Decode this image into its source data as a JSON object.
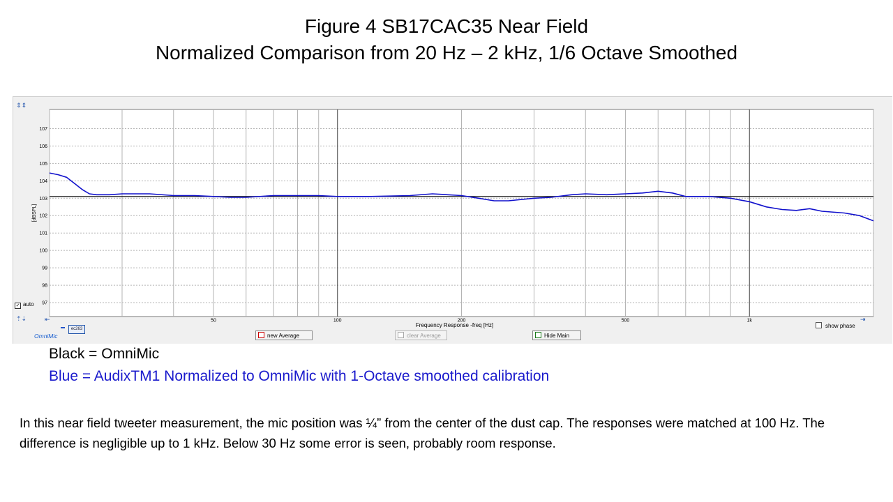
{
  "slide": {
    "title_line1": "Figure  4   SB17CAC35  Near Field",
    "title_line2": "Normalized Comparison from 20 Hz – 2 kHz, 1/6 Octave Smoothed",
    "legend_black": "Black = OmniMic",
    "legend_blue": "Blue = AudixTM1 Normalized to OmniMic with 1-Octave smoothed calibration",
    "body_text": "In this near field tweeter measurement, the mic position was ¼” from the center of the dust cap.  The responses were matched at 100 Hz.  The difference is negligible up to 1 kHz.  Below 30 Hz some error is seen, probably room response."
  },
  "software": {
    "app_label": "OmniMic",
    "trace_tag": "ec263",
    "auto_label": "auto",
    "auto_checked": true,
    "show_phase_label": "show phase",
    "show_phase_checked": false,
    "buttons": {
      "new_average": "new Average",
      "clear_average": "clear Average",
      "hide_main": "Hide Main"
    }
  },
  "chart_data": {
    "type": "line",
    "title": "",
    "xlabel": "Frequency Response -freq [Hz]",
    "ylabel": "[dBSPL]",
    "x_scale": "log",
    "xlim": [
      20,
      2000
    ],
    "ylim": [
      96.2,
      108.1
    ],
    "x_ticks": [
      50,
      100,
      200,
      500,
      1000
    ],
    "x_tick_labels": [
      "50",
      "100",
      "200",
      "500",
      "1k"
    ],
    "y_ticks": [
      97,
      98,
      99,
      100,
      101,
      102,
      103,
      104,
      105,
      106,
      107
    ],
    "grid": true,
    "colors": {
      "omnimic": "#000000",
      "audix": "#1010cc",
      "grid": "#b4b4b4",
      "major": "#404040"
    },
    "series": [
      {
        "name": "OmniMic",
        "color": "#000000",
        "points": [
          [
            20,
            103.1
          ],
          [
            2000,
            103.1
          ]
        ]
      },
      {
        "name": "AudixTM1",
        "color": "#1010cc",
        "points": [
          [
            20,
            104.45
          ],
          [
            21,
            104.35
          ],
          [
            22,
            104.2
          ],
          [
            23,
            103.85
          ],
          [
            24,
            103.5
          ],
          [
            25,
            103.25
          ],
          [
            26,
            103.2
          ],
          [
            28,
            103.2
          ],
          [
            30,
            103.25
          ],
          [
            35,
            103.25
          ],
          [
            40,
            103.15
          ],
          [
            45,
            103.15
          ],
          [
            50,
            103.1
          ],
          [
            55,
            103.05
          ],
          [
            60,
            103.05
          ],
          [
            70,
            103.15
          ],
          [
            80,
            103.15
          ],
          [
            90,
            103.15
          ],
          [
            100,
            103.1
          ],
          [
            120,
            103.1
          ],
          [
            150,
            103.15
          ],
          [
            170,
            103.25
          ],
          [
            200,
            103.15
          ],
          [
            220,
            103.0
          ],
          [
            240,
            102.85
          ],
          [
            260,
            102.85
          ],
          [
            300,
            103.0
          ],
          [
            330,
            103.05
          ],
          [
            370,
            103.2
          ],
          [
            400,
            103.25
          ],
          [
            450,
            103.2
          ],
          [
            500,
            103.25
          ],
          [
            550,
            103.3
          ],
          [
            600,
            103.4
          ],
          [
            650,
            103.3
          ],
          [
            700,
            103.1
          ],
          [
            800,
            103.1
          ],
          [
            900,
            103.0
          ],
          [
            1000,
            102.8
          ],
          [
            1100,
            102.5
          ],
          [
            1200,
            102.35
          ],
          [
            1300,
            102.3
          ],
          [
            1400,
            102.4
          ],
          [
            1500,
            102.25
          ],
          [
            1700,
            102.15
          ],
          [
            1850,
            102.0
          ],
          [
            2000,
            101.7
          ]
        ]
      }
    ]
  }
}
